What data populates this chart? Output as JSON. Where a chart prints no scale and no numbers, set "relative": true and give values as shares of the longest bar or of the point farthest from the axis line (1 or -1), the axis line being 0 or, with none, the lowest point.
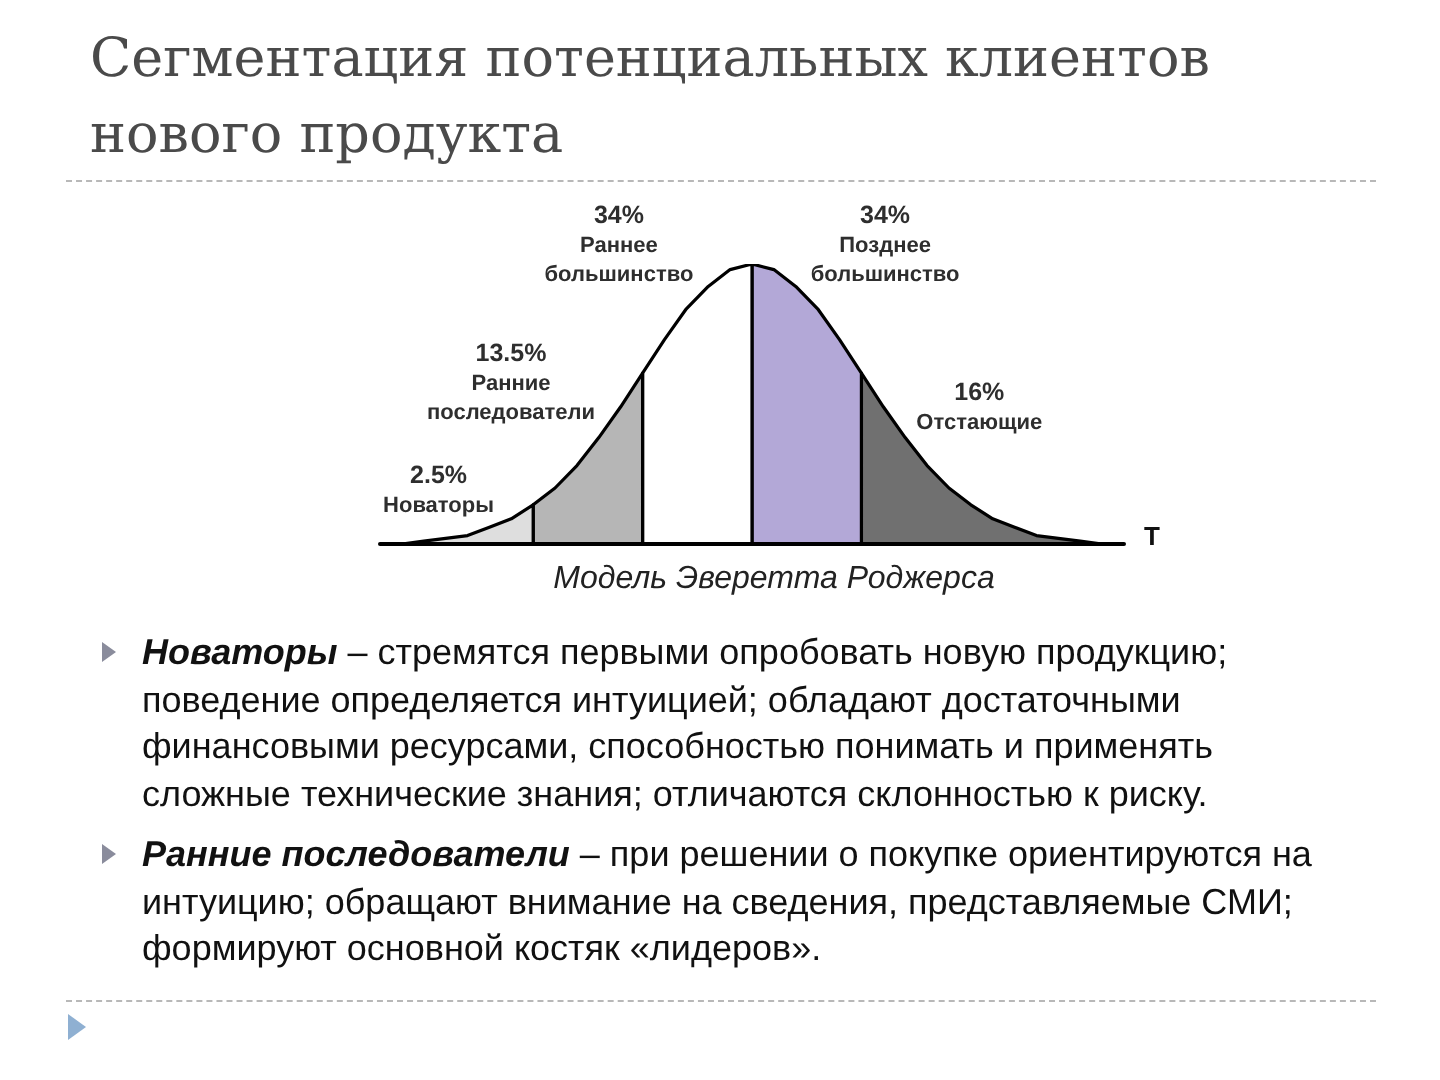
{
  "chart_data": {
    "type": "area",
    "relative": true,
    "tick_labels": false,
    "title": "Сегментация потенциальных клиентов нового продукта",
    "xlabel": "T",
    "categories": [
      null,
      null,
      null,
      null,
      null,
      null,
      null,
      null,
      null,
      null,
      null,
      null,
      null,
      null,
      null,
      null,
      null,
      null,
      null,
      null,
      null,
      null,
      null,
      null,
      null,
      null,
      null,
      null,
      null,
      null,
      null,
      null,
      null,
      null,
      null
    ],
    "series": [
      {
        "name": "Новаторы",
        "color": "#dedede",
        "values": [
          0,
          0,
          0.01,
          0.02,
          0.03,
          0.06,
          0.09,
          0.14,
          null,
          null,
          null,
          null,
          null,
          null,
          null,
          null,
          null,
          null,
          null,
          null,
          null,
          null,
          null,
          null,
          null,
          null,
          null,
          null,
          null,
          null,
          null,
          null,
          null,
          null,
          null
        ]
      },
      {
        "name": "Ранние последователи",
        "color": "#b6b6b6",
        "values": [
          null,
          null,
          null,
          null,
          null,
          null,
          null,
          0.14,
          0.2,
          0.28,
          0.38,
          0.49,
          0.61,
          null,
          null,
          null,
          null,
          null,
          null,
          null,
          null,
          null,
          null,
          null,
          null,
          null,
          null,
          null,
          null,
          null,
          null,
          null,
          null,
          null,
          null
        ]
      },
      {
        "name": "Раннее большинство",
        "color": "#ffffff",
        "values": [
          null,
          null,
          null,
          null,
          null,
          null,
          null,
          null,
          null,
          null,
          null,
          null,
          0.61,
          0.73,
          0.84,
          0.92,
          0.98,
          1,
          null,
          null,
          null,
          null,
          null,
          null,
          null,
          null,
          null,
          null,
          null,
          null,
          null,
          null,
          null,
          null,
          null
        ]
      },
      {
        "name": "Позднее большинство",
        "color": "#b3a8d7",
        "values": [
          null,
          null,
          null,
          null,
          null,
          null,
          null,
          null,
          null,
          null,
          null,
          null,
          null,
          null,
          null,
          null,
          null,
          1,
          0.98,
          0.92,
          0.84,
          0.73,
          0.61,
          null,
          null,
          null,
          null,
          null,
          null,
          null,
          null,
          null,
          null,
          null,
          null
        ]
      },
      {
        "name": "Отстающие",
        "color": "#707070",
        "values": [
          null,
          null,
          null,
          null,
          null,
          null,
          null,
          null,
          null,
          null,
          null,
          null,
          null,
          null,
          null,
          null,
          null,
          null,
          null,
          null,
          null,
          null,
          0.61,
          0.49,
          0.38,
          0.28,
          0.2,
          0.14,
          0.09,
          0.06,
          0.03,
          0.02,
          0.01,
          0,
          0
        ]
      }
    ],
    "annotations": [
      "2.5%",
      "13.5%",
      "34%",
      "34%",
      "16%",
      "Модель Эверетта Роджерса",
      "Новаторы – стремятся первыми опробовать новую продукцию; поведение определяется интуицией; обладают достаточными финансовыми ресурсами, способностью понимать и применять сложные технические знания; отличаются склонностью к риску.",
      "Ранние последователи – при решении о покупке ориентируются на интуицию; обращают внимание на сведения, представляемые СМИ; формируют основной костяк «лидеров»."
    ]
  }
}
